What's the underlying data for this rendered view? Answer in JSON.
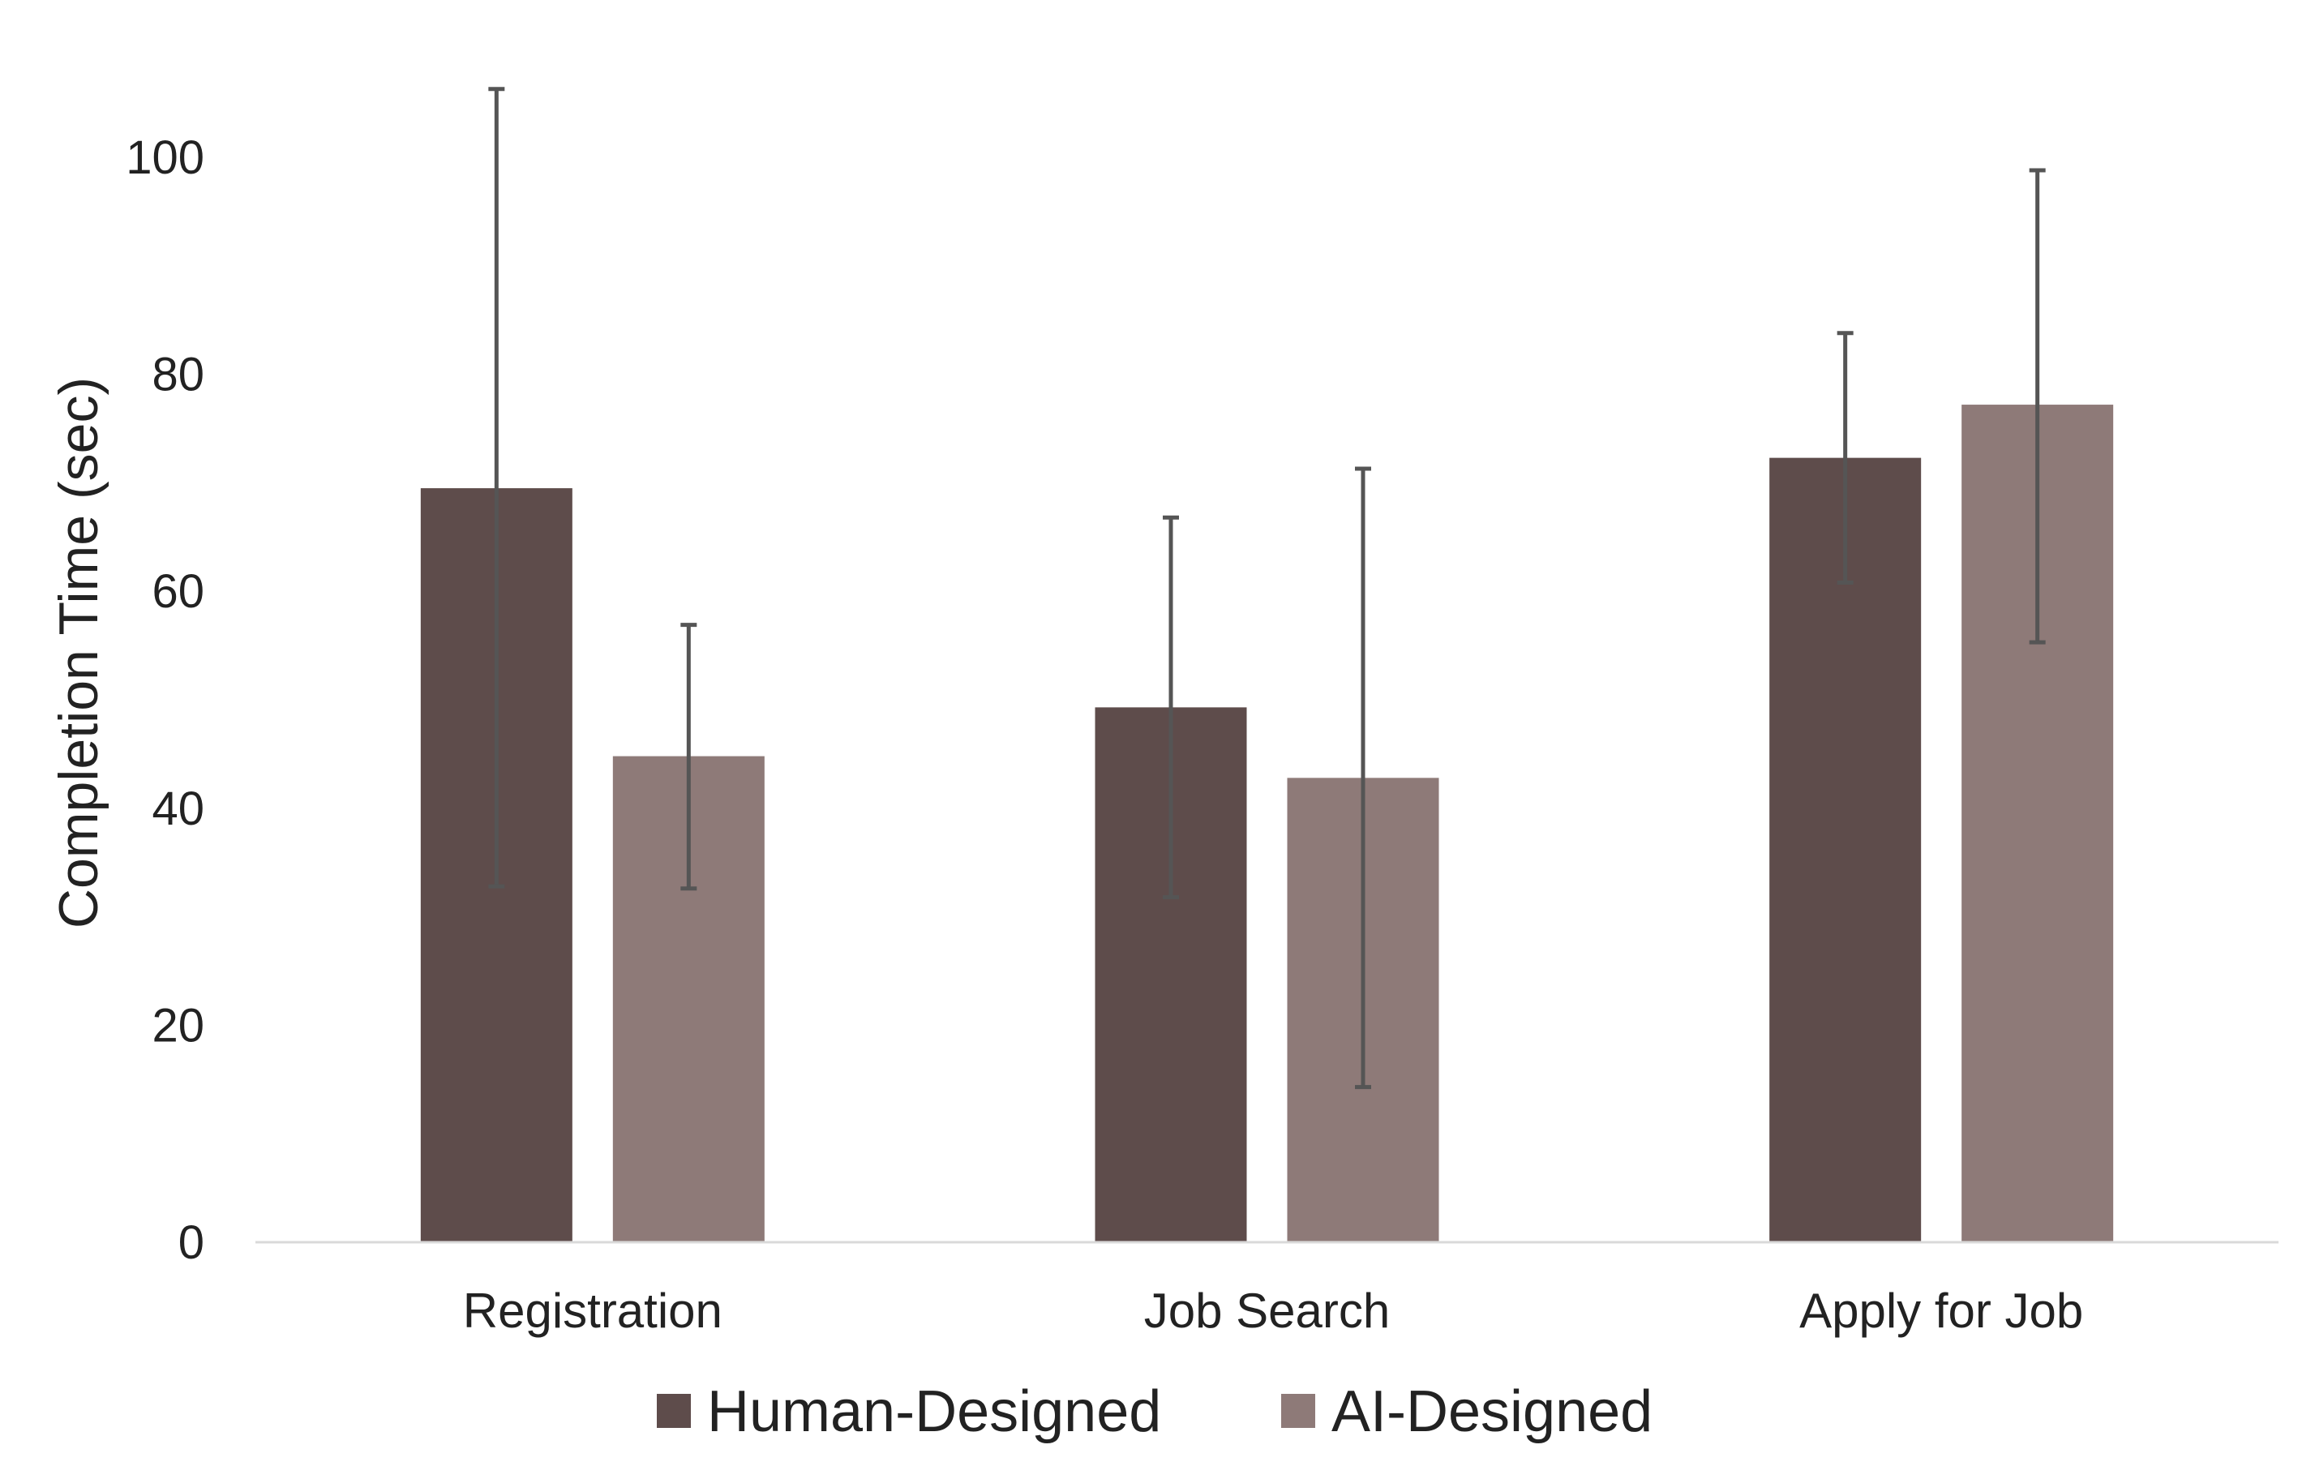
{
  "chart_data": {
    "type": "bar",
    "title": "",
    "xlabel": "",
    "ylabel": "Completion Time (sec)",
    "ylim": [
      0,
      100
    ],
    "yticks": [
      0,
      20,
      40,
      60,
      80,
      100
    ],
    "grid": false,
    "legend_position": "bottom",
    "categories": [
      "Registration",
      "Job Search",
      "Apply for Job"
    ],
    "series": [
      {
        "name": "Human-Designed",
        "color": "#5e4c4b",
        "values": [
          69.5,
          49.3,
          72.3
        ],
        "error_low": [
          32.8,
          31.8,
          60.8
        ],
        "error_high": [
          106.3,
          66.8,
          83.8
        ]
      },
      {
        "name": "AI-Designed",
        "color": "#8e7a78",
        "values": [
          44.8,
          42.8,
          77.2
        ],
        "error_low": [
          32.6,
          14.3,
          55.3
        ],
        "error_high": [
          56.9,
          71.3,
          98.8
        ]
      }
    ]
  }
}
